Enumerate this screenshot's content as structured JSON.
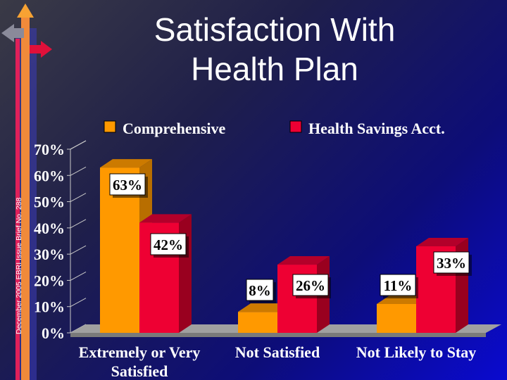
{
  "slide": {
    "title_line1": "Satisfaction With",
    "title_line2": "Health Plan",
    "side_caption": "December 2005 EBRI Issue Brief No. 288"
  },
  "chart_data": {
    "type": "bar",
    "categories": [
      "Extremely or Very Satisfied",
      "Not Satisfied",
      "Not Likely to Stay"
    ],
    "category_lines": [
      [
        "Extremely or Very",
        "Satisfied"
      ],
      [
        "Not Satisfied"
      ],
      [
        "Not Likely to Stay"
      ]
    ],
    "series": [
      {
        "name": "Comprehensive",
        "values": [
          63,
          8,
          11
        ],
        "labels": [
          "63%",
          "8%",
          "11%"
        ],
        "color": "#FF9900"
      },
      {
        "name": "Health Savings Acct.",
        "values": [
          42,
          26,
          33
        ],
        "labels": [
          "42%",
          "26%",
          "33%"
        ],
        "color": "#EE0033"
      }
    ],
    "ylim": [
      0,
      70
    ],
    "yticks": [
      "0%",
      "10%",
      "20%",
      "30%",
      "40%",
      "50%",
      "60%",
      "70%"
    ],
    "grid": false,
    "legend_position": "top"
  },
  "colors": {
    "comprehensive_side": "#B86E00",
    "comprehensive_top": "#CC7A00",
    "hsa_side": "#99001F",
    "hsa_top": "#B3002A",
    "floor": "#A0A0A0",
    "text": "#FFFFFF",
    "label_box": "#FFFFFF",
    "label_text": "#000000"
  }
}
